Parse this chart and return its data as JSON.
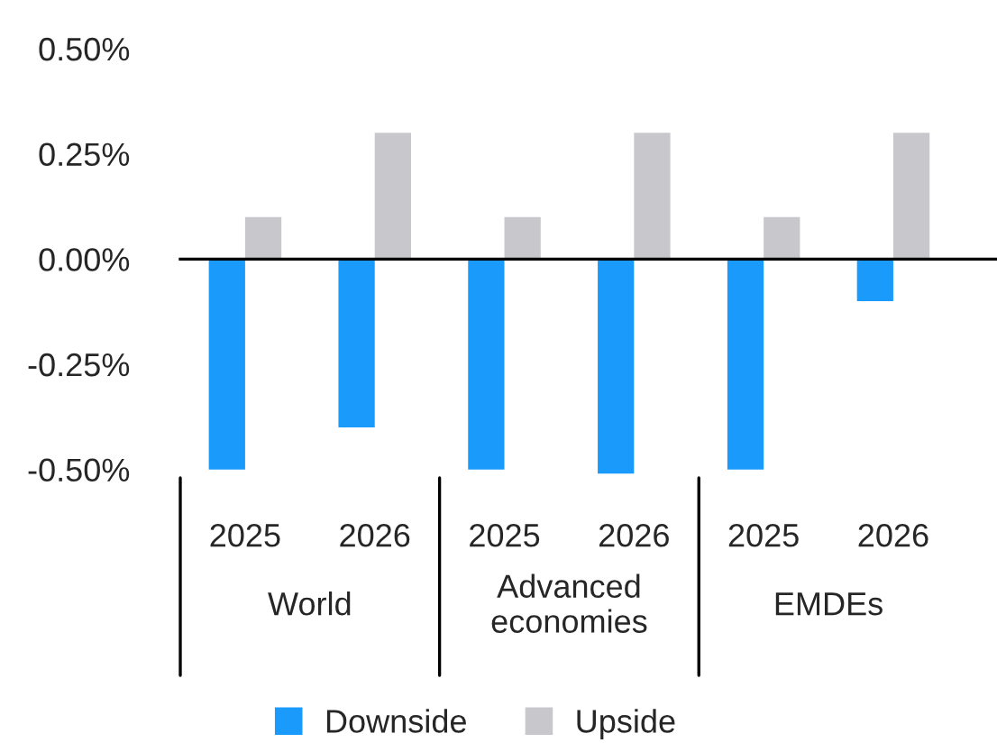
{
  "chart_data": {
    "type": "bar",
    "categories": [
      "2025",
      "2026",
      "2025",
      "2026",
      "2025",
      "2026"
    ],
    "series": [
      {
        "name": "Downside",
        "color": "#1a9bfc",
        "values": [
          -0.5,
          -0.4,
          -0.5,
          -0.51,
          -0.5,
          -0.1
        ]
      },
      {
        "name": "Upside",
        "color": "#c8c8cc",
        "values": [
          0.1,
          0.3,
          0.1,
          0.3,
          0.1,
          0.3
        ]
      }
    ],
    "annotations": [
      "World",
      "Advanced\neconomies",
      "EMDEs"
    ],
    "ylim": [
      -0.52,
      0.5
    ],
    "yticks": [
      {
        "value": -0.5,
        "label": "-0.50%"
      },
      {
        "value": -0.25,
        "label": "-0.25%"
      },
      {
        "value": 0,
        "label": "0.00%"
      },
      {
        "value": 0.25,
        "label": "0.25%"
      },
      {
        "value": 0.5,
        "label": "0.50%"
      }
    ],
    "legend": "bottom"
  }
}
